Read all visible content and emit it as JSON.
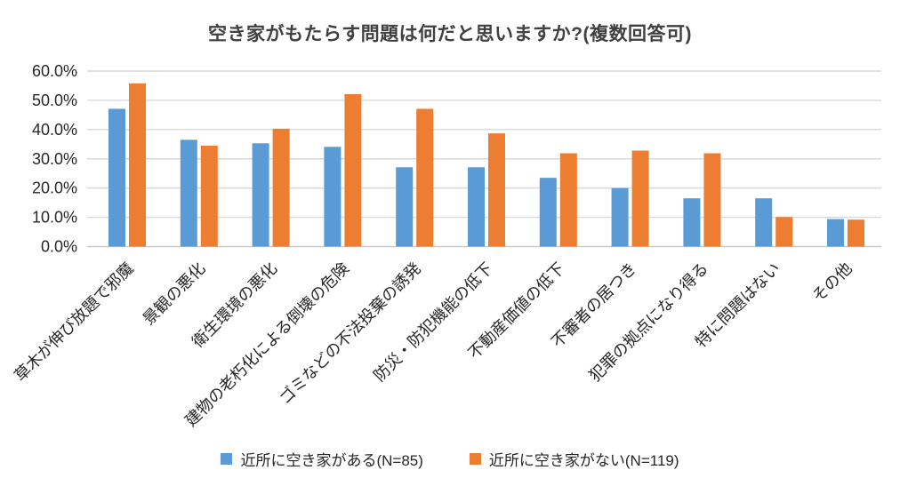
{
  "chart_data": {
    "type": "bar",
    "title": "空き家がもたらす問題は何だと思いますか?(複数回答可)",
    "categories": [
      "草木が伸び放題で邪魔",
      "景観の悪化",
      "衛生環境の悪化",
      "建物の老朽化による倒壊の危険",
      "ゴミなどの不法投棄の誘発",
      "防災・防犯機能の低下",
      "不動産価値の低下",
      "不審者の居つき",
      "犯罪の拠点になり得る",
      "特に問題はない",
      "その他"
    ],
    "series": [
      {
        "name": "近所に空き家がある(N=85)",
        "color": "#5B9BD5",
        "values": [
          47.1,
          36.5,
          35.3,
          34.1,
          27.1,
          27.1,
          23.5,
          20.0,
          16.5,
          16.5,
          9.4
        ]
      },
      {
        "name": "近所に空き家がない(N=119)",
        "color": "#ED7D31",
        "values": [
          55.8,
          34.5,
          40.3,
          52.1,
          47.1,
          38.7,
          31.9,
          32.8,
          31.9,
          10.1,
          9.2
        ]
      }
    ],
    "xlabel": "",
    "ylabel": "",
    "ylim": [
      0,
      60
    ],
    "y_ticks": [
      {
        "value": 0,
        "label": "0.0%"
      },
      {
        "value": 10,
        "label": "10.0%"
      },
      {
        "value": 20,
        "label": "20.0%"
      },
      {
        "value": 30,
        "label": "30.0%"
      },
      {
        "value": 40,
        "label": "40.0%"
      },
      {
        "value": 50,
        "label": "50.0%"
      },
      {
        "value": 60,
        "label": "60.0%"
      }
    ],
    "grid": true,
    "legend_position": "bottom"
  }
}
